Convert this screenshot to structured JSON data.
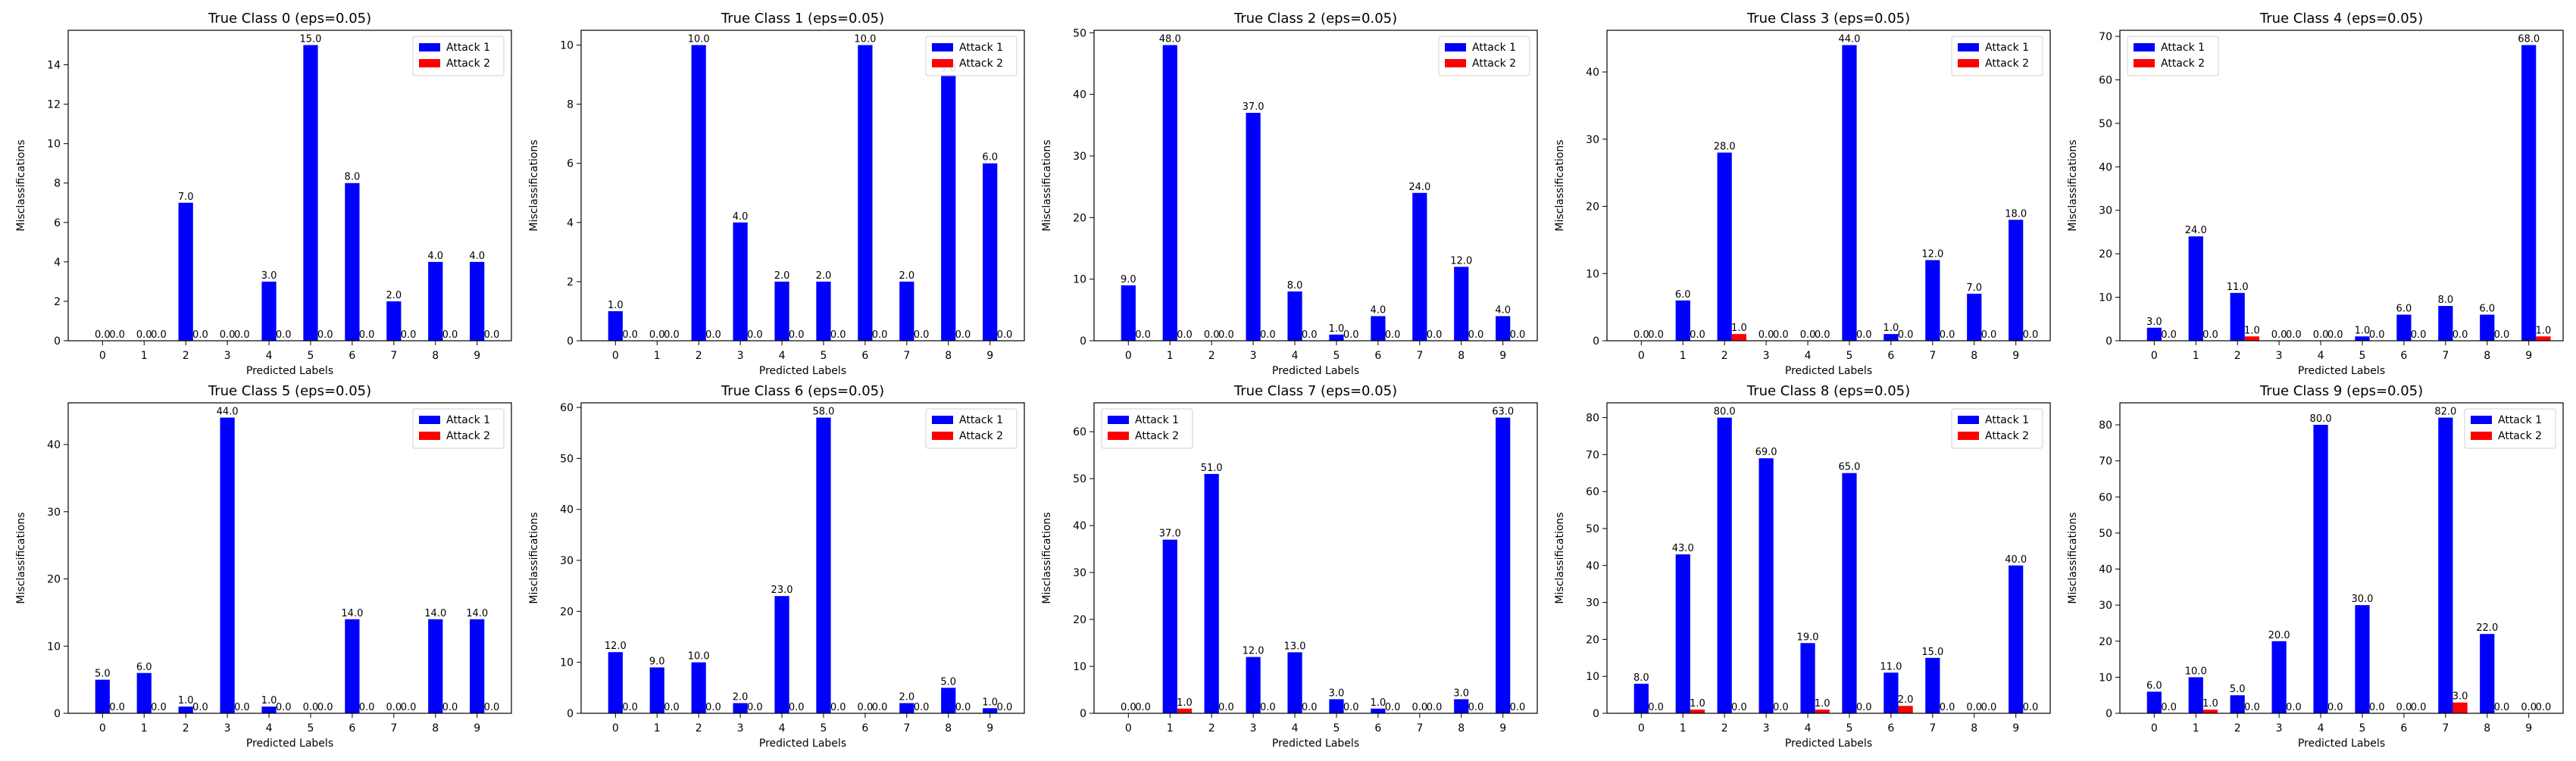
{
  "colors": {
    "attack1": "#0000ff",
    "attack2": "#ff0000"
  },
  "chart_data": [
    {
      "type": "bar",
      "title": "True Class 0 (eps=0.05)",
      "xlabel": "Predicted Labels",
      "ylabel": "Misclassifications",
      "categories": [
        "0",
        "1",
        "2",
        "3",
        "4",
        "5",
        "6",
        "7",
        "8",
        "9"
      ],
      "ylim": [
        0,
        15.75
      ],
      "yticks": [
        0,
        2,
        4,
        6,
        8,
        10,
        12,
        14
      ],
      "legend": "top-right",
      "series": [
        {
          "name": "Attack 1",
          "values": [
            0,
            0,
            7,
            0,
            3,
            15,
            8,
            2,
            4,
            4
          ]
        },
        {
          "name": "Attack 2",
          "values": [
            0,
            0,
            0,
            0,
            0,
            0,
            0,
            0,
            0,
            0
          ]
        }
      ]
    },
    {
      "type": "bar",
      "title": "True Class 1 (eps=0.05)",
      "xlabel": "Predicted Labels",
      "ylabel": "Misclassifications",
      "categories": [
        "0",
        "1",
        "2",
        "3",
        "4",
        "5",
        "6",
        "7",
        "8",
        "9"
      ],
      "ylim": [
        0,
        10.5
      ],
      "yticks": [
        0,
        2,
        4,
        6,
        8,
        10
      ],
      "legend": "top-right",
      "series": [
        {
          "name": "Attack 1",
          "values": [
            1,
            0,
            10,
            4,
            2,
            2,
            10,
            2,
            9,
            6
          ]
        },
        {
          "name": "Attack 2",
          "values": [
            0,
            0,
            0,
            0,
            0,
            0,
            0,
            0,
            0,
            0
          ]
        }
      ]
    },
    {
      "type": "bar",
      "title": "True Class 2 (eps=0.05)",
      "xlabel": "Predicted Labels",
      "ylabel": "Misclassifications",
      "categories": [
        "0",
        "1",
        "2",
        "3",
        "4",
        "5",
        "6",
        "7",
        "8",
        "9"
      ],
      "ylim": [
        0,
        50.4
      ],
      "yticks": [
        0,
        10,
        20,
        30,
        40,
        50
      ],
      "legend": "top-right",
      "series": [
        {
          "name": "Attack 1",
          "values": [
            9,
            48,
            0,
            37,
            8,
            1,
            4,
            24,
            12,
            4
          ]
        },
        {
          "name": "Attack 2",
          "values": [
            0,
            0,
            0,
            0,
            0,
            0,
            0,
            0,
            0,
            0
          ]
        }
      ]
    },
    {
      "type": "bar",
      "title": "True Class 3 (eps=0.05)",
      "xlabel": "Predicted Labels",
      "ylabel": "Misclassifications",
      "categories": [
        "0",
        "1",
        "2",
        "3",
        "4",
        "5",
        "6",
        "7",
        "8",
        "9"
      ],
      "ylim": [
        0,
        46.2
      ],
      "yticks": [
        0,
        10,
        20,
        30,
        40
      ],
      "legend": "top-right",
      "series": [
        {
          "name": "Attack 1",
          "values": [
            0,
            6,
            28,
            0,
            0,
            44,
            1,
            12,
            7,
            18
          ]
        },
        {
          "name": "Attack 2",
          "values": [
            0,
            0,
            1,
            0,
            0,
            0,
            0,
            0,
            0,
            0
          ]
        }
      ]
    },
    {
      "type": "bar",
      "title": "True Class 4 (eps=0.05)",
      "xlabel": "Predicted Labels",
      "ylabel": "Misclassifications",
      "categories": [
        "0",
        "1",
        "2",
        "3",
        "4",
        "5",
        "6",
        "7",
        "8",
        "9"
      ],
      "ylim": [
        0,
        71.4
      ],
      "yticks": [
        0,
        10,
        20,
        30,
        40,
        50,
        60,
        70
      ],
      "legend": "top-left",
      "series": [
        {
          "name": "Attack 1",
          "values": [
            3,
            24,
            11,
            0,
            0,
            1,
            6,
            8,
            6,
            68
          ]
        },
        {
          "name": "Attack 2",
          "values": [
            0,
            0,
            1,
            0,
            0,
            0,
            0,
            0,
            0,
            1
          ]
        }
      ]
    },
    {
      "type": "bar",
      "title": "True Class 5 (eps=0.05)",
      "xlabel": "Predicted Labels",
      "ylabel": "Misclassifications",
      "categories": [
        "0",
        "1",
        "2",
        "3",
        "4",
        "5",
        "6",
        "7",
        "8",
        "9"
      ],
      "ylim": [
        0,
        46.2
      ],
      "yticks": [
        0,
        10,
        20,
        30,
        40
      ],
      "legend": "top-right",
      "series": [
        {
          "name": "Attack 1",
          "values": [
            5,
            6,
            1,
            44,
            1,
            0,
            14,
            0,
            14,
            14
          ]
        },
        {
          "name": "Attack 2",
          "values": [
            0,
            0,
            0,
            0,
            0,
            0,
            0,
            0,
            0,
            0
          ]
        }
      ]
    },
    {
      "type": "bar",
      "title": "True Class 6 (eps=0.05)",
      "xlabel": "Predicted Labels",
      "ylabel": "Misclassifications",
      "categories": [
        "0",
        "1",
        "2",
        "3",
        "4",
        "5",
        "6",
        "7",
        "8",
        "9"
      ],
      "ylim": [
        0,
        60.9
      ],
      "yticks": [
        0,
        10,
        20,
        30,
        40,
        50,
        60
      ],
      "legend": "top-right",
      "series": [
        {
          "name": "Attack 1",
          "values": [
            12,
            9,
            10,
            2,
            23,
            58,
            0,
            2,
            5,
            1
          ]
        },
        {
          "name": "Attack 2",
          "values": [
            0,
            0,
            0,
            0,
            0,
            0,
            0,
            0,
            0,
            0
          ]
        }
      ]
    },
    {
      "type": "bar",
      "title": "True Class 7 (eps=0.05)",
      "xlabel": "Predicted Labels",
      "ylabel": "Misclassifications",
      "categories": [
        "0",
        "1",
        "2",
        "3",
        "4",
        "5",
        "6",
        "7",
        "8",
        "9"
      ],
      "ylim": [
        0,
        66.15
      ],
      "yticks": [
        0,
        10,
        20,
        30,
        40,
        50,
        60
      ],
      "legend": "top-left",
      "series": [
        {
          "name": "Attack 1",
          "values": [
            0,
            37,
            51,
            12,
            13,
            3,
            1,
            0,
            3,
            63
          ]
        },
        {
          "name": "Attack 2",
          "values": [
            0,
            1,
            0,
            0,
            0,
            0,
            0,
            0,
            0,
            0
          ]
        }
      ]
    },
    {
      "type": "bar",
      "title": "True Class 8 (eps=0.05)",
      "xlabel": "Predicted Labels",
      "ylabel": "Misclassifications",
      "categories": [
        "0",
        "1",
        "2",
        "3",
        "4",
        "5",
        "6",
        "7",
        "8",
        "9"
      ],
      "ylim": [
        0,
        84
      ],
      "yticks": [
        0,
        10,
        20,
        30,
        40,
        50,
        60,
        70,
        80
      ],
      "legend": "top-right",
      "series": [
        {
          "name": "Attack 1",
          "values": [
            8,
            43,
            80,
            69,
            19,
            65,
            11,
            15,
            0,
            40
          ]
        },
        {
          "name": "Attack 2",
          "values": [
            0,
            1,
            0,
            0,
            1,
            0,
            2,
            0,
            0,
            0
          ]
        }
      ]
    },
    {
      "type": "bar",
      "title": "True Class 9 (eps=0.05)",
      "xlabel": "Predicted Labels",
      "ylabel": "Misclassifications",
      "categories": [
        "0",
        "1",
        "2",
        "3",
        "4",
        "5",
        "6",
        "7",
        "8",
        "9"
      ],
      "ylim": [
        0,
        86.1
      ],
      "yticks": [
        0,
        10,
        20,
        30,
        40,
        50,
        60,
        70,
        80
      ],
      "legend": "top-right",
      "series": [
        {
          "name": "Attack 1",
          "values": [
            6,
            10,
            5,
            20,
            80,
            30,
            0,
            82,
            22,
            0
          ]
        },
        {
          "name": "Attack 2",
          "values": [
            0,
            1,
            0,
            0,
            0,
            0,
            0,
            3,
            0,
            0
          ]
        }
      ]
    }
  ]
}
